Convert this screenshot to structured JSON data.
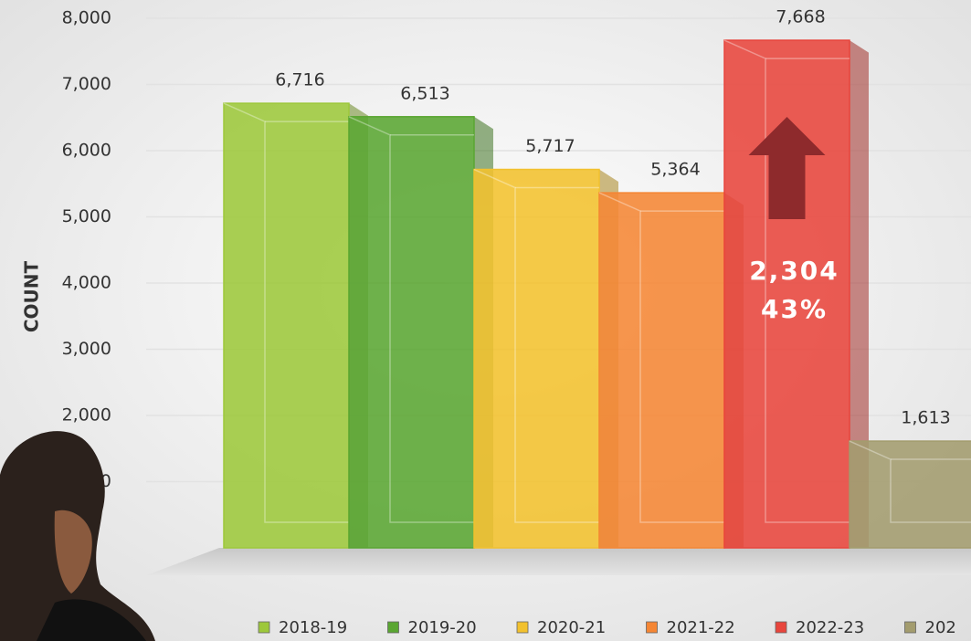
{
  "chart_data": {
    "type": "bar",
    "y_label": "COUNT",
    "categories": [
      "2018-19",
      "2019-20",
      "2020-21",
      "2021-22",
      "2022-23",
      "202"
    ],
    "values": [
      6716,
      6513,
      5717,
      5364,
      7668,
      1613
    ],
    "value_labels": [
      "6,716",
      "6,513",
      "5,717",
      "5,364",
      "7,668",
      "1,613"
    ],
    "colors": [
      "#9dc83b",
      "#5aa632",
      "#f2c12e",
      "#f58634",
      "#e8453c",
      "#a39c6e"
    ],
    "ylim": [
      0,
      8000
    ],
    "yticks": [
      {
        "value": 1000,
        "label": "1,000"
      },
      {
        "value": 2000,
        "label": "2,000"
      },
      {
        "value": 3000,
        "label": "3,000"
      },
      {
        "value": 4000,
        "label": "4,000"
      },
      {
        "value": 5000,
        "label": "5,000"
      },
      {
        "value": 6000,
        "label": "6,000"
      },
      {
        "value": 7000,
        "label": "7,000"
      },
      {
        "value": 8000,
        "label": "8,000"
      }
    ],
    "grid": true,
    "annotation": {
      "lines": [
        "2,304",
        "43%"
      ]
    }
  }
}
